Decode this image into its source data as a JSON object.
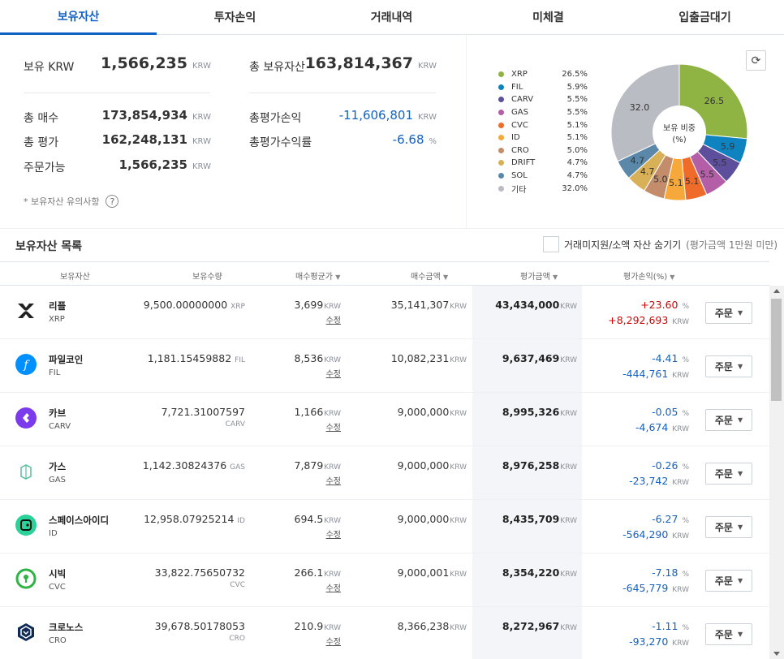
{
  "tabs": [
    {
      "label": "보유자산"
    },
    {
      "label": "투자손익"
    },
    {
      "label": "거래내역"
    },
    {
      "label": "미체결"
    },
    {
      "label": "입출금대기"
    }
  ],
  "summary": {
    "krw_label": "보유 KRW",
    "krw_value": "1,566,235",
    "krw_unit": "KRW",
    "total_label": "총 보유자산",
    "total_value": "163,814,367",
    "total_unit": "KRW",
    "buy_label": "총 매수",
    "buy_value": "173,854,934",
    "buy_unit": "KRW",
    "eval_label": "총 평가",
    "eval_value": "162,248,131",
    "eval_unit": "KRW",
    "order_label": "주문가능",
    "order_value": "1,566,235",
    "order_unit": "KRW",
    "pl_label": "총평가손익",
    "pl_value": "-11,606,801",
    "pl_unit": "KRW",
    "rate_label": "총평가수익률",
    "rate_value": "-6.68",
    "rate_unit": "%",
    "notice": "* 보유자산 유의사항",
    "help_icon": "?"
  },
  "allocation": {
    "center_label_1": "보유 비중",
    "center_label_2": "(%)",
    "refresh_icon": "⟳",
    "items": [
      {
        "name": "XRP",
        "pct": "26.5%",
        "value": 26.5,
        "label": "26.5",
        "color": "#8fb443"
      },
      {
        "name": "FIL",
        "pct": "5.9%",
        "value": 5.9,
        "label": "5.9",
        "color": "#0f82c0"
      },
      {
        "name": "CARV",
        "pct": "5.5%",
        "value": 5.5,
        "label": "5.5",
        "color": "#5d4f9c"
      },
      {
        "name": "GAS",
        "pct": "5.5%",
        "value": 5.5,
        "label": "5.5",
        "color": "#b45ea8"
      },
      {
        "name": "CVC",
        "pct": "5.1%",
        "value": 5.1,
        "label": "5.1",
        "color": "#ef6b2a"
      },
      {
        "name": "ID",
        "pct": "5.1%",
        "value": 5.1,
        "label": "5.1",
        "color": "#f6a83a"
      },
      {
        "name": "CRO",
        "pct": "5.0%",
        "value": 5.0,
        "label": "5.0",
        "color": "#c38c6a"
      },
      {
        "name": "DRIFT",
        "pct": "4.7%",
        "value": 4.7,
        "label": "4.7",
        "color": "#d8b058"
      },
      {
        "name": "SOL",
        "pct": "4.7%",
        "value": 4.7,
        "label": "4.7",
        "color": "#5b88a8"
      },
      {
        "name": "기타",
        "pct": "32.0%",
        "value": 32.0,
        "label": "32.0",
        "color": "#b9bcc2"
      }
    ]
  },
  "holdings": {
    "title": "보유자산 목록",
    "hide_label": "거래미지원/소액 자산 숨기기",
    "hide_note": "(평가금액 1만원 미만)",
    "headers": {
      "asset": "보유자산",
      "qty": "보유수량",
      "avg": "매수평균가",
      "buy": "매수금액",
      "value": "평가금액",
      "pl": "평가손익(%)"
    },
    "edit_label": "수정",
    "order_label": "주문",
    "unit": "KRW",
    "pct_unit": "%",
    "rows": [
      {
        "name": "리플",
        "symbol": "XRP",
        "qty": "9,500.00000000",
        "qty_sym": "XRP",
        "qty_inline": true,
        "avg": "3,699",
        "buy": "35,141,307",
        "value": "43,434,000",
        "pct": "+23.60",
        "amt": "+8,292,693",
        "dir": "up",
        "icon": "xrp-icon"
      },
      {
        "name": "파일코인",
        "symbol": "FIL",
        "qty": "1,181.15459882",
        "qty_sym": "FIL",
        "qty_inline": true,
        "avg": "8,536",
        "buy": "10,082,231",
        "value": "9,637,469",
        "pct": "-4.41",
        "amt": "-444,761",
        "dir": "down",
        "icon": "fil-icon"
      },
      {
        "name": "카브",
        "symbol": "CARV",
        "qty": "7,721.31007597",
        "qty_sym": "CARV",
        "qty_inline": false,
        "avg": "1,166",
        "buy": "9,000,000",
        "value": "8,995,326",
        "pct": "-0.05",
        "amt": "-4,674",
        "dir": "down",
        "icon": "carv-icon"
      },
      {
        "name": "가스",
        "symbol": "GAS",
        "qty": "1,142.30824376",
        "qty_sym": "GAS",
        "qty_inline": true,
        "avg": "7,879",
        "buy": "9,000,000",
        "value": "8,976,258",
        "pct": "-0.26",
        "amt": "-23,742",
        "dir": "down",
        "icon": "gas-icon"
      },
      {
        "name": "스페이스아이디",
        "symbol": "ID",
        "qty": "12,958.07925214",
        "qty_sym": "ID",
        "qty_inline": true,
        "avg": "694.5",
        "buy": "9,000,000",
        "value": "8,435,709",
        "pct": "-6.27",
        "amt": "-564,290",
        "dir": "down",
        "icon": "id-icon"
      },
      {
        "name": "시빅",
        "symbol": "CVC",
        "qty": "33,822.75650732",
        "qty_sym": "CVC",
        "qty_inline": false,
        "avg": "266.1",
        "buy": "9,000,001",
        "value": "8,354,220",
        "pct": "-7.18",
        "amt": "-645,779",
        "dir": "down",
        "icon": "cvc-icon"
      },
      {
        "name": "크로노스",
        "symbol": "CRO",
        "qty": "39,678.50178053",
        "qty_sym": "CRO",
        "qty_inline": false,
        "avg": "210.9",
        "buy": "8,366,238",
        "value": "8,272,967",
        "pct": "-1.11",
        "amt": "-93,270",
        "dir": "down",
        "icon": "cro-icon"
      }
    ]
  }
}
